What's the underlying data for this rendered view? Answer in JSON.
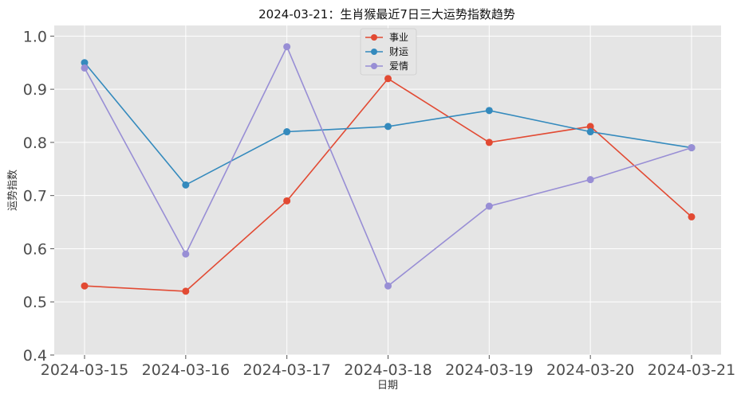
{
  "chart_data": {
    "type": "line",
    "title": "2024-03-21：生肖猴最近7日三大运势指数趋势",
    "xlabel": "日期",
    "ylabel": "运势指数",
    "categories": [
      "2024-03-15",
      "2024-03-16",
      "2024-03-17",
      "2024-03-18",
      "2024-03-19",
      "2024-03-20",
      "2024-03-21"
    ],
    "ylim": [
      0.4,
      1.02
    ],
    "yticks": [
      0.4,
      0.5,
      0.6,
      0.7,
      0.8,
      0.9,
      1.0
    ],
    "ytick_labels": [
      "0.4",
      "0.5",
      "0.6",
      "0.7",
      "0.8",
      "0.9",
      "1.0"
    ],
    "grid": true,
    "legend_position": "top-center",
    "series": [
      {
        "name": "事业",
        "color": "#E24A33",
        "values": [
          0.53,
          0.52,
          0.69,
          0.92,
          0.8,
          0.83,
          0.66
        ]
      },
      {
        "name": "财运",
        "color": "#348ABD",
        "values": [
          0.95,
          0.72,
          0.82,
          0.83,
          0.86,
          0.82,
          0.79
        ]
      },
      {
        "name": "爱情",
        "color": "#988ED5",
        "values": [
          0.94,
          0.59,
          0.98,
          0.53,
          0.68,
          0.73,
          0.79
        ]
      }
    ]
  }
}
